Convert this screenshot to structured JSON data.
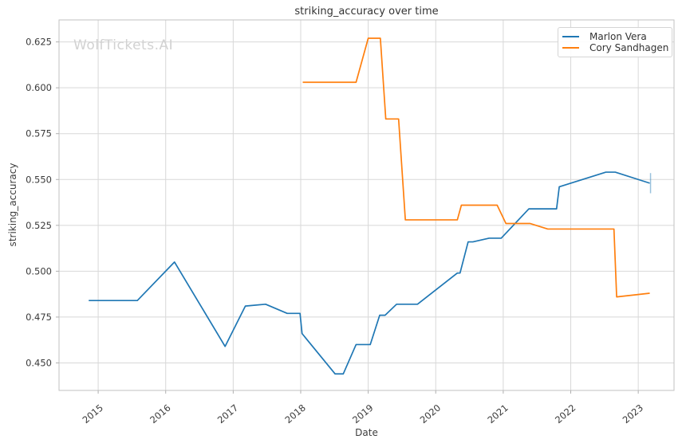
{
  "chart_data": {
    "type": "line",
    "title": "striking_accuracy over time",
    "xlabel": "Date",
    "ylabel": "striking_accuracy",
    "watermark": "WolfTickets.AI",
    "grid": true,
    "legend_position": "upper right",
    "xlim": [
      2014.42,
      2023.53
    ],
    "ylim": [
      0.435,
      0.637
    ],
    "x_ticks": [
      {
        "value": 2015,
        "label": "2015"
      },
      {
        "value": 2016,
        "label": "2016"
      },
      {
        "value": 2017,
        "label": "2017"
      },
      {
        "value": 2018,
        "label": "2018"
      },
      {
        "value": 2019,
        "label": "2019"
      },
      {
        "value": 2020,
        "label": "2020"
      },
      {
        "value": 2021,
        "label": "2021"
      },
      {
        "value": 2022,
        "label": "2022"
      },
      {
        "value": 2023,
        "label": "2023"
      }
    ],
    "y_ticks": [
      {
        "value": 0.45,
        "label": "0.450"
      },
      {
        "value": 0.475,
        "label": "0.475"
      },
      {
        "value": 0.5,
        "label": "0.500"
      },
      {
        "value": 0.525,
        "label": "0.525"
      },
      {
        "value": 0.55,
        "label": "0.550"
      },
      {
        "value": 0.575,
        "label": "0.575"
      },
      {
        "value": 0.6,
        "label": "0.600"
      },
      {
        "value": 0.625,
        "label": "0.625"
      }
    ],
    "series": [
      {
        "name": "Marlon Vera",
        "color": "#1f77b4",
        "points": [
          [
            2014.86,
            0.484
          ],
          [
            2015.58,
            0.484
          ],
          [
            2016.13,
            0.505
          ],
          [
            2016.88,
            0.459
          ],
          [
            2017.18,
            0.481
          ],
          [
            2017.48,
            0.482
          ],
          [
            2017.8,
            0.477
          ],
          [
            2017.99,
            0.477
          ],
          [
            2018.02,
            0.466
          ],
          [
            2018.51,
            0.444
          ],
          [
            2018.63,
            0.444
          ],
          [
            2018.82,
            0.46
          ],
          [
            2019.03,
            0.46
          ],
          [
            2019.17,
            0.476
          ],
          [
            2019.25,
            0.476
          ],
          [
            2019.42,
            0.482
          ],
          [
            2019.73,
            0.482
          ],
          [
            2020.32,
            0.499
          ],
          [
            2020.36,
            0.499
          ],
          [
            2020.48,
            0.516
          ],
          [
            2020.55,
            0.516
          ],
          [
            2020.79,
            0.518
          ],
          [
            2020.97,
            0.518
          ],
          [
            2021.38,
            0.534
          ],
          [
            2021.79,
            0.534
          ],
          [
            2021.83,
            0.546
          ],
          [
            2022.52,
            0.554
          ],
          [
            2022.66,
            0.554
          ],
          [
            2023.17,
            0.548
          ]
        ],
        "end_whisker": {
          "x": 2023.17,
          "y_low": 0.5425,
          "y_high": 0.5535
        }
      },
      {
        "name": "Cory Sandhagen",
        "color": "#ff7f0e",
        "points": [
          [
            2018.03,
            0.603
          ],
          [
            2018.82,
            0.603
          ],
          [
            2019.0,
            0.627
          ],
          [
            2019.18,
            0.627
          ],
          [
            2019.26,
            0.583
          ],
          [
            2019.45,
            0.583
          ],
          [
            2019.55,
            0.528
          ],
          [
            2020.32,
            0.528
          ],
          [
            2020.38,
            0.536
          ],
          [
            2020.91,
            0.536
          ],
          [
            2021.04,
            0.526
          ],
          [
            2021.4,
            0.526
          ],
          [
            2021.66,
            0.523
          ],
          [
            2022.64,
            0.523
          ],
          [
            2022.68,
            0.486
          ],
          [
            2023.17,
            0.488
          ]
        ]
      }
    ]
  },
  "colors": {
    "grid": "#d8d8d8",
    "spine": "#c2c2c2",
    "tick": "#b0b0b0",
    "tick_label": "#3a3a3a"
  }
}
